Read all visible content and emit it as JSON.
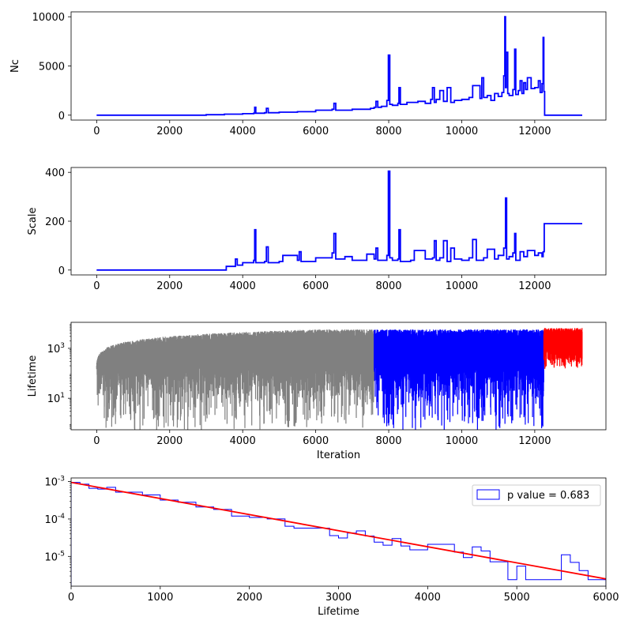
{
  "chart_data": [
    {
      "id": "nc",
      "type": "line",
      "title": "",
      "xlabel": "",
      "ylabel": "Nc",
      "xlim": [
        -700,
        13950
      ],
      "ylim": [
        -500,
        10500
      ],
      "xticks": [
        0,
        2000,
        4000,
        6000,
        8000,
        10000,
        12000
      ],
      "xtick_labels": [
        "0",
        "2000",
        "4000",
        "6000",
        "8000",
        "10000",
        "12000"
      ],
      "yticks": [
        0,
        5000,
        10000
      ],
      "ytick_labels": [
        "0",
        "5000",
        "10000"
      ],
      "series": [
        {
          "color": "#0000ff",
          "x": [
            0,
            1000,
            2000,
            3000,
            3500,
            4000,
            4300,
            4330,
            4360,
            4600,
            4650,
            4700,
            5000,
            5500,
            6000,
            6450,
            6500,
            6550,
            6800,
            7000,
            7500,
            7600,
            7650,
            7700,
            7800,
            7950,
            7990,
            8030,
            8100,
            8250,
            8280,
            8320,
            8500,
            8800,
            9000,
            9150,
            9200,
            9250,
            9300,
            9400,
            9500,
            9600,
            9700,
            9800,
            10000,
            10200,
            10300,
            10500,
            10550,
            10600,
            10700,
            10800,
            10900,
            11000,
            11100,
            11150,
            11180,
            11200,
            11220,
            11260,
            11300,
            11400,
            11450,
            11480,
            11550,
            11600,
            11650,
            11700,
            11750,
            11800,
            11900,
            12000,
            12100,
            12150,
            12200,
            12230,
            12250,
            12270,
            12300,
            13300
          ],
          "y": [
            0,
            0,
            0,
            50,
            100,
            150,
            200,
            800,
            200,
            250,
            700,
            250,
            300,
            350,
            500,
            600,
            1200,
            500,
            500,
            600,
            700,
            800,
            1400,
            800,
            900,
            1500,
            6100,
            1100,
            1000,
            1200,
            2800,
            1100,
            1300,
            1400,
            1200,
            1600,
            2800,
            1300,
            1600,
            2500,
            1400,
            2800,
            1300,
            1500,
            1600,
            1800,
            3000,
            1700,
            3800,
            1800,
            2000,
            1500,
            2200,
            1900,
            2300,
            4000,
            10000,
            2800,
            6400,
            2200,
            2000,
            2600,
            6700,
            2100,
            2500,
            3500,
            2200,
            3300,
            2600,
            3800,
            2700,
            2800,
            3500,
            2300,
            3200,
            7900,
            2400,
            0,
            0,
            0
          ]
        }
      ]
    },
    {
      "id": "scale",
      "type": "line",
      "title": "",
      "xlabel": "",
      "ylabel": "Scale",
      "xlim": [
        -700,
        13950
      ],
      "ylim": [
        -20,
        420
      ],
      "xticks": [
        0,
        2000,
        4000,
        6000,
        8000,
        10000,
        12000
      ],
      "xtick_labels": [
        "0",
        "2000",
        "4000",
        "6000",
        "8000",
        "10000",
        "12000"
      ],
      "yticks": [
        0,
        200,
        400
      ],
      "ytick_labels": [
        "0",
        "200",
        "400"
      ],
      "series": [
        {
          "color": "#0000ff",
          "x": [
            0,
            3500,
            3550,
            3800,
            3850,
            4000,
            4300,
            4330,
            4360,
            4600,
            4650,
            4700,
            5000,
            5100,
            5500,
            5550,
            5600,
            6000,
            6450,
            6500,
            6550,
            6800,
            7000,
            7400,
            7600,
            7650,
            7700,
            7950,
            7990,
            8030,
            8100,
            8250,
            8280,
            8320,
            8600,
            8700,
            9000,
            9200,
            9250,
            9300,
            9400,
            9500,
            9600,
            9700,
            9800,
            10000,
            10200,
            10300,
            10400,
            10600,
            10700,
            10900,
            11000,
            11150,
            11200,
            11230,
            11300,
            11400,
            11450,
            11480,
            11600,
            11700,
            11800,
            12000,
            12100,
            12200,
            12230,
            12260,
            12300,
            13300
          ],
          "y": [
            0,
            0,
            15,
            45,
            20,
            30,
            40,
            165,
            30,
            35,
            95,
            30,
            35,
            60,
            40,
            75,
            35,
            50,
            70,
            150,
            45,
            55,
            40,
            65,
            45,
            90,
            40,
            60,
            405,
            50,
            40,
            45,
            165,
            35,
            40,
            80,
            45,
            50,
            120,
            40,
            50,
            120,
            35,
            90,
            45,
            40,
            50,
            125,
            40,
            50,
            85,
            45,
            60,
            90,
            295,
            45,
            55,
            70,
            150,
            40,
            75,
            55,
            80,
            60,
            70,
            55,
            75,
            190,
            190,
            190
          ]
        }
      ]
    },
    {
      "id": "lifetime",
      "type": "line",
      "title": "",
      "xlabel": "Iteration",
      "ylabel": "Lifetime",
      "scale": "log",
      "xlim": [
        -700,
        13950
      ],
      "ylim": [
        0.55,
        11000
      ],
      "xticks": [
        0,
        2000,
        4000,
        6000,
        8000,
        10000,
        12000
      ],
      "xtick_labels": [
        "0",
        "2000",
        "4000",
        "6000",
        "8000",
        "10000",
        "12000"
      ],
      "yticks": [
        10,
        1000
      ],
      "ytick_labels": [
        "10^1",
        "10^3"
      ],
      "series": [
        {
          "color": "#808080",
          "x": [
            0,
            7600
          ]
        },
        {
          "color": "#0000ff",
          "x": [
            7600,
            12250
          ]
        },
        {
          "color": "#ff0000",
          "x": [
            12250,
            13300
          ]
        }
      ]
    },
    {
      "id": "histogram",
      "type": "histogram",
      "title": "",
      "xlabel": "Lifetime",
      "ylabel": "",
      "scale": "log",
      "xlim": [
        0,
        6000
      ],
      "ylim": [
        1.6e-06,
        0.00125
      ],
      "xticks": [
        0,
        1000,
        2000,
        3000,
        4000,
        5000,
        6000
      ],
      "xtick_labels": [
        "0",
        "1000",
        "2000",
        "3000",
        "4000",
        "5000",
        "6000"
      ],
      "yticks": [
        1e-05,
        0.0001,
        0.001
      ],
      "ytick_labels": [
        "10^-5",
        "10^-4",
        "10^-3"
      ],
      "bin_width": 100,
      "bin_start": 0,
      "counts": [
        0.00095,
        0.00085,
        0.00066,
        0.00063,
        0.0007,
        0.00052,
        0.00052,
        0.00052,
        0.00044,
        0.00044,
        0.00032,
        0.00032,
        0.00028,
        0.00028,
        0.00021,
        0.00021,
        0.00018,
        0.00018,
        0.00012,
        0.00012,
        0.00011,
        0.00011,
        0.0001,
        0.0001,
        6.4e-05,
        5.7e-05,
        5.7e-05,
        5.7e-05,
        5.7e-05,
        3.6e-05,
        3.1e-05,
        4.2e-05,
        4.8e-05,
        3.5e-05,
        2.4e-05,
        2e-05,
        3e-05,
        1.9e-05,
        1.5e-05,
        1.5e-05,
        2.1e-05,
        2.1e-05,
        2.1e-05,
        1.3e-05,
        9.3e-06,
        1.8e-05,
        1.4e-05,
        7.2e-06,
        7.2e-06,
        2.4e-06,
        5.5e-06,
        2.4e-06,
        2.4e-06,
        2.4e-06,
        2.4e-06,
        1.1e-05,
        6.9e-06,
        4.2e-06,
        2.4e-06,
        2.4e-06
      ],
      "fit": {
        "color": "#ff0000",
        "x": [
          0,
          6000
        ],
        "y": [
          0.00095,
          2.5e-06
        ]
      },
      "legend": {
        "label": "p value = 0.683",
        "placement": "top-right"
      }
    }
  ]
}
